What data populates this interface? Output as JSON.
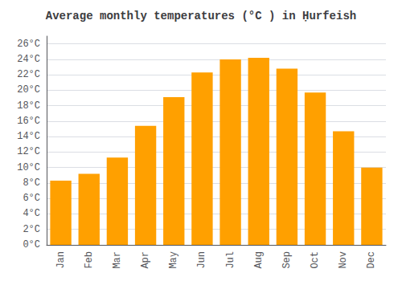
{
  "chart_data": {
    "type": "bar",
    "title": "Average monthly temperatures (°C ) in Ḥurfeish",
    "categories": [
      "Jan",
      "Feb",
      "Mar",
      "Apr",
      "May",
      "Jun",
      "Jul",
      "Aug",
      "Sep",
      "Oct",
      "Nov",
      "Dec"
    ],
    "values": [
      8.3,
      9.2,
      11.3,
      15.4,
      19.1,
      22.3,
      24.0,
      24.2,
      22.8,
      19.7,
      14.7,
      10.0
    ],
    "color": "#FFA000",
    "ylim": [
      0,
      27
    ],
    "yticks": [
      {
        "value": 0,
        "label": "0°C"
      },
      {
        "value": 2,
        "label": "2°C"
      },
      {
        "value": 4,
        "label": "4°C"
      },
      {
        "value": 6,
        "label": "6°C"
      },
      {
        "value": 8,
        "label": "8°C"
      },
      {
        "value": 10,
        "label": "10°C"
      },
      {
        "value": 12,
        "label": "12°C"
      },
      {
        "value": 14,
        "label": "14°C"
      },
      {
        "value": 16,
        "label": "16°C"
      },
      {
        "value": 18,
        "label": "18°C"
      },
      {
        "value": 20,
        "label": "20°C"
      },
      {
        "value": 22,
        "label": "22°C"
      },
      {
        "value": 24,
        "label": "24°C"
      },
      {
        "value": 26,
        "label": "26°C"
      }
    ],
    "grid": true
  }
}
